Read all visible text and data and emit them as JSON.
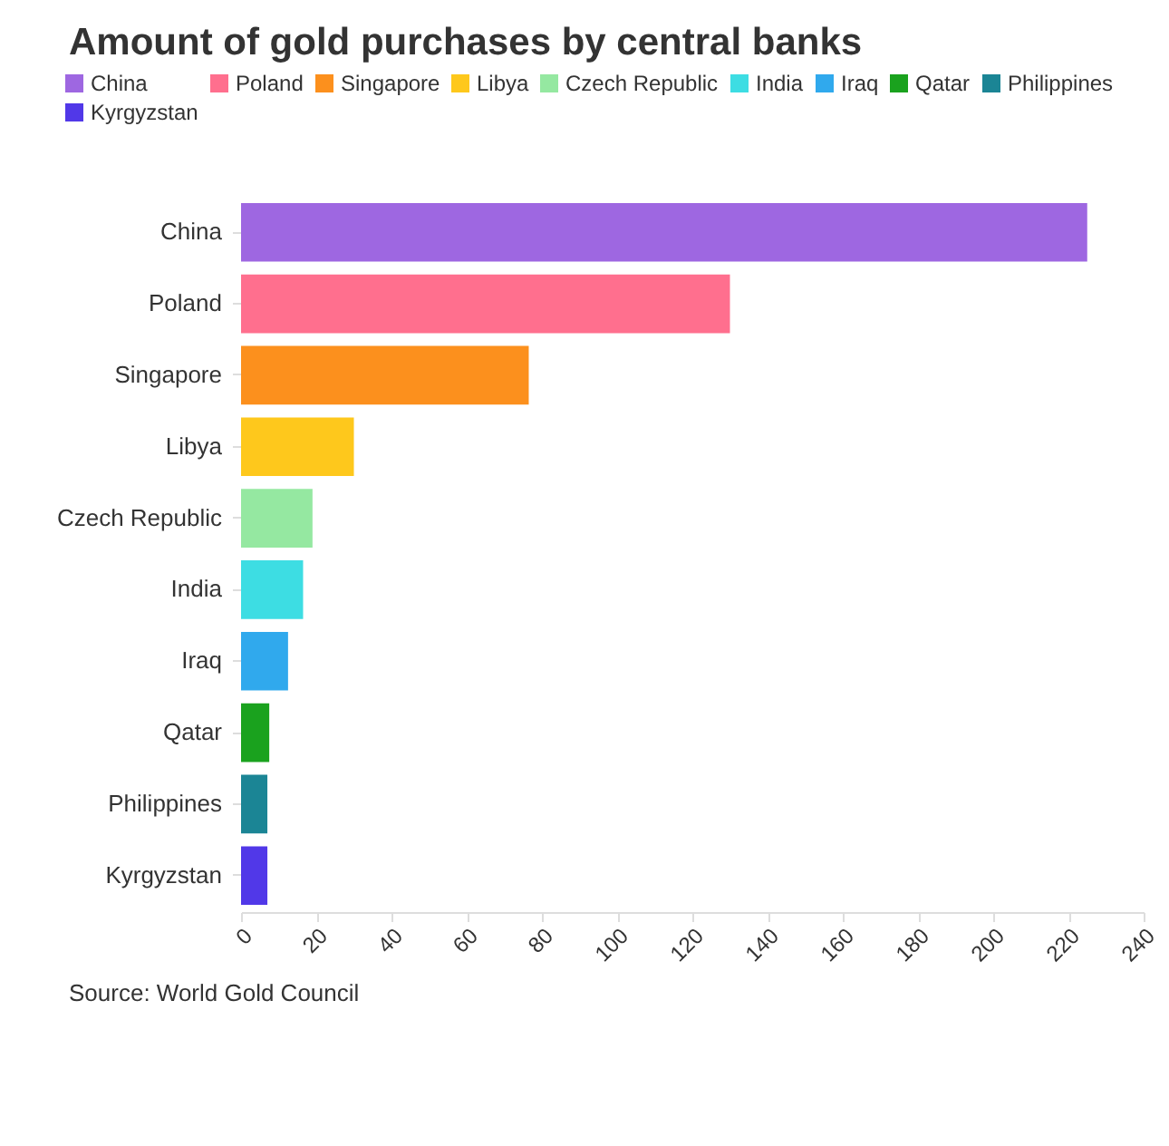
{
  "chart_data": {
    "type": "bar",
    "orientation": "horizontal",
    "title": "Amount of gold purchases by central banks",
    "categories": [
      "China",
      "Poland",
      "Singapore",
      "Libya",
      "Czech Republic",
      "India",
      "Iraq",
      "Qatar",
      "Philippines",
      "Kyrgyzstan"
    ],
    "series": [
      {
        "name": "China",
        "color": "#9e67e1",
        "values": [
          225,
          null,
          null,
          null,
          null,
          null,
          null,
          null,
          null,
          null
        ]
      },
      {
        "name": "Poland",
        "color": "#ff6f8e",
        "values": [
          null,
          130,
          null,
          null,
          null,
          null,
          null,
          null,
          null,
          null
        ]
      },
      {
        "name": "Singapore",
        "color": "#fc901d",
        "values": [
          null,
          null,
          76.5,
          null,
          null,
          null,
          null,
          null,
          null,
          null
        ]
      },
      {
        "name": "Libya",
        "color": "#fec81c",
        "values": [
          null,
          null,
          null,
          30,
          null,
          null,
          null,
          null,
          null,
          null
        ]
      },
      {
        "name": "Czech Republic",
        "color": "#95e8a1",
        "values": [
          null,
          null,
          null,
          null,
          19,
          null,
          null,
          null,
          null,
          null
        ]
      },
      {
        "name": "India",
        "color": "#3ddde3",
        "values": [
          null,
          null,
          null,
          null,
          null,
          16.5,
          null,
          null,
          null,
          null
        ]
      },
      {
        "name": "Iraq",
        "color": "#30a9ed",
        "values": [
          null,
          null,
          null,
          null,
          null,
          null,
          12.5,
          null,
          null,
          null
        ]
      },
      {
        "name": "Qatar",
        "color": "#1aa21e",
        "values": [
          null,
          null,
          null,
          null,
          null,
          null,
          null,
          7.5,
          null,
          null
        ]
      },
      {
        "name": "Philippines",
        "color": "#1b8595",
        "values": [
          null,
          null,
          null,
          null,
          null,
          null,
          null,
          null,
          7,
          null
        ]
      },
      {
        "name": "Kyrgyzstan",
        "color": "#5138e8",
        "values": [
          null,
          null,
          null,
          null,
          null,
          null,
          null,
          null,
          null,
          7
        ]
      }
    ],
    "xlim": [
      0,
      240
    ],
    "xticks": [
      0,
      20,
      40,
      60,
      80,
      100,
      120,
      140,
      160,
      180,
      200,
      220,
      240
    ],
    "grid": false,
    "legend": "top",
    "annotations": [
      "Source: World Gold Council"
    ]
  }
}
